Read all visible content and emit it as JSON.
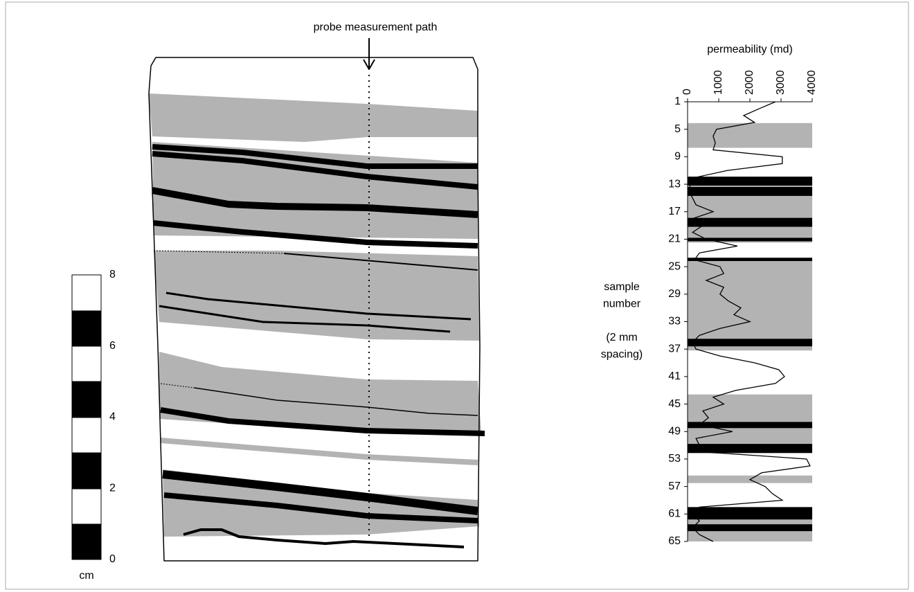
{
  "annotation": "probe measurement path",
  "scale": {
    "label": "cm",
    "ticks": [
      0,
      2,
      4,
      6,
      8
    ],
    "lim": [
      0,
      8
    ]
  },
  "sample_axis_label": [
    "sample",
    "number",
    "(2 mm",
    "spacing)"
  ],
  "chart_data": {
    "type": "line",
    "x_label": "permeability (md)",
    "xlim": [
      0,
      4000
    ],
    "xticks": [
      0,
      1000,
      2000,
      3000,
      4000
    ],
    "ylim": [
      1,
      65
    ],
    "yticks": [
      1,
      5,
      9,
      13,
      17,
      21,
      25,
      29,
      33,
      37,
      41,
      45,
      49,
      53,
      57,
      61,
      65
    ],
    "y_inverted": true,
    "x": [
      1,
      2,
      3,
      4,
      5,
      6,
      7,
      8,
      9,
      10,
      11,
      12,
      13,
      14,
      15,
      16,
      17,
      18,
      19,
      20,
      21,
      22,
      23,
      24,
      25,
      26,
      27,
      28,
      29,
      30,
      31,
      32,
      33,
      34,
      35,
      36,
      37,
      38,
      39,
      40,
      41,
      42,
      43,
      44,
      45,
      46,
      47,
      48,
      49,
      50,
      51,
      52,
      53,
      54,
      55,
      56,
      57,
      58,
      59,
      60,
      61,
      62,
      63,
      64,
      65
    ],
    "series": [
      {
        "color": "#000000",
        "values": [
          2820,
          2300,
          1800,
          2150,
          930,
          820,
          890,
          820,
          3040,
          3040,
          1270,
          270,
          90,
          40,
          160,
          270,
          820,
          160,
          490,
          160,
          600,
          1600,
          380,
          220,
          1040,
          1160,
          600,
          1160,
          1040,
          1310,
          1710,
          1490,
          2000,
          1040,
          380,
          160,
          270,
          1040,
          2150,
          2930,
          3110,
          2820,
          1550,
          820,
          1160,
          490,
          670,
          380,
          1440,
          270,
          380,
          600,
          3820,
          3930,
          2380,
          2000,
          2490,
          2710,
          3040,
          380,
          160,
          380,
          160,
          380,
          820
        ]
      }
    ],
    "bands": [
      {
        "from": 4.1,
        "to": 7.7,
        "color": "#b3b3b3"
      },
      {
        "from": 11.9,
        "to": 21.5,
        "color": "#b3b3b3"
      },
      {
        "from": 11.9,
        "to": 13.2,
        "color": "#000000"
      },
      {
        "from": 13.4,
        "to": 14.7,
        "color": "#000000"
      },
      {
        "from": 17.9,
        "to": 19.2,
        "color": "#000000"
      },
      {
        "from": 20.8,
        "to": 21.3,
        "color": "#000000"
      },
      {
        "from": 23.7,
        "to": 24.2,
        "color": "#000000"
      },
      {
        "from": 24.2,
        "to": 37.2,
        "color": "#b3b3b3"
      },
      {
        "from": 35.5,
        "to": 36.6,
        "color": "#000000"
      },
      {
        "from": 43.6,
        "to": 52.2,
        "color": "#b3b3b3"
      },
      {
        "from": 47.6,
        "to": 48.5,
        "color": "#000000"
      },
      {
        "from": 50.8,
        "to": 52.1,
        "color": "#000000"
      },
      {
        "from": 55.4,
        "to": 56.5,
        "color": "#b3b3b3"
      },
      {
        "from": 60,
        "to": 65,
        "color": "#b3b3b3"
      },
      {
        "from": 60,
        "to": 61.8,
        "color": "#000000"
      },
      {
        "from": 62.5,
        "to": 63.5,
        "color": "#000000"
      }
    ]
  }
}
